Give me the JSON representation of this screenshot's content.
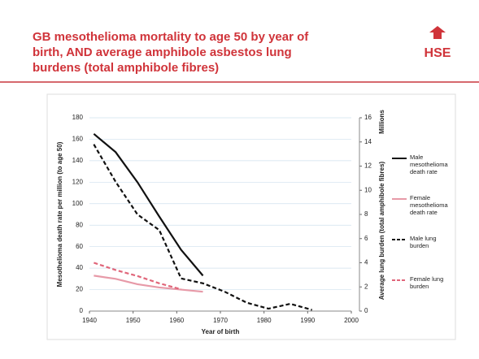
{
  "chart_data": {
    "type": "line",
    "title_lines": [
      "GB mesothelioma mortality to age 50 by year of",
      "birth, AND average amphibole asbestos lung",
      "burdens (total amphibole fibres)"
    ],
    "logo": "HSE",
    "xlabel": "Year of birth",
    "ylabel": "Mesothelioma death rate per million (to age 50)",
    "y2label": "Average lung burden (total amphibole fibres)",
    "y2unit": "Millions",
    "x": [
      1941,
      1946,
      1951,
      1956,
      1961,
      1966,
      1971,
      1976,
      1981,
      1986,
      1991
    ],
    "xlim": [
      1940,
      2000
    ],
    "xticks": [
      1940,
      1950,
      1960,
      1970,
      1980,
      1990,
      2000
    ],
    "ylim": [
      0,
      180
    ],
    "yticks": [
      0,
      20,
      40,
      60,
      80,
      100,
      120,
      140,
      160,
      180
    ],
    "y2lim": [
      0,
      16
    ],
    "y2ticks": [
      0,
      2,
      4,
      6,
      8,
      10,
      12,
      14,
      16
    ],
    "grid": true,
    "series": [
      {
        "name": "Male mesothelioma death rate",
        "color": "#111111",
        "dash": false,
        "values": [
          165,
          148,
          120,
          88,
          57,
          33,
          null,
          null,
          null,
          null,
          null
        ]
      },
      {
        "name": "Female mesothelioma death rate",
        "color": "#e79aa8",
        "dash": false,
        "values": [
          33,
          30,
          25,
          22,
          20,
          18,
          null,
          null,
          null,
          null,
          null
        ]
      },
      {
        "name": "Male lung burden",
        "color": "#111111",
        "dash": true,
        "axis": "y2",
        "values": [
          13.8,
          10.7,
          8.0,
          6.7,
          2.7,
          2.3,
          1.6,
          0.7,
          0.2,
          0.6,
          0.1
        ]
      },
      {
        "name": "Female lung burden",
        "color": "#e0667a",
        "dash": true,
        "axis": "y2",
        "values": [
          4.0,
          3.4,
          2.9,
          2.3,
          1.8,
          null,
          null,
          null,
          null,
          null,
          null
        ]
      }
    ]
  }
}
